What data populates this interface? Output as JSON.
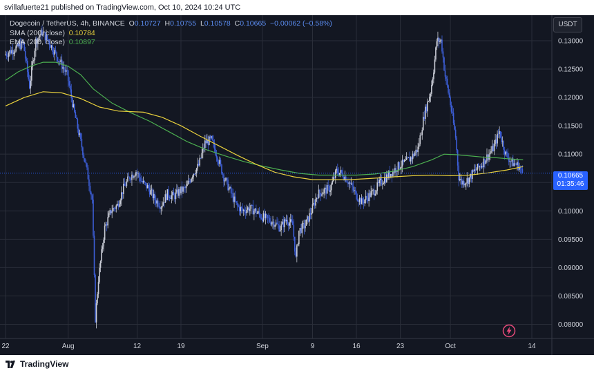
{
  "header": {
    "publisher_line": "svillafuerte21 published on TradingView.com, Oct 10, 2024 10:24 UTC"
  },
  "legend": {
    "symbol": "Dogecoin / TetherUS, 4h, BINANCE",
    "open_label": "O",
    "open": "0.10727",
    "high_label": "H",
    "high": "0.10755",
    "low_label": "L",
    "low": "0.10578",
    "close_label": "C",
    "close": "0.10665",
    "change": "−0.00062 (−0.58%)",
    "sma_label": "SMA (200, close)",
    "sma_value": "0.10784",
    "ema_label": "EMA (200, close)",
    "ema_value": "0.10897"
  },
  "price_axis": {
    "currency": "USDT"
  },
  "price_tag": {
    "price": "0.10665",
    "countdown": "01:35:46"
  },
  "footer": {
    "brand": "TradingView"
  },
  "colors": {
    "background": "#131722",
    "grid": "#2a2e39",
    "up": "#c9ccd6",
    "down": "#3d5fd9",
    "sma": "#e9d13d",
    "ema": "#4caf50",
    "last_price": "#2962ff"
  },
  "chart_data": {
    "type": "candlestick",
    "y_axis": {
      "min": 0.0775,
      "max": 0.1345,
      "ticks": [
        0.08,
        0.085,
        0.09,
        0.095,
        0.1,
        0.105,
        0.11,
        0.115,
        0.12,
        0.125,
        0.13
      ],
      "tick_labels": [
        "0.08000",
        "0.08500",
        "0.09000",
        "0.09500",
        "0.10000",
        "0.10500",
        "0.11000",
        "0.11500",
        "0.12000",
        "0.12500",
        "0.13000"
      ]
    },
    "x_axis": {
      "labels": [
        {
          "label": "22",
          "day": 0
        },
        {
          "label": "Aug",
          "day": 10
        },
        {
          "label": "12",
          "day": 21
        },
        {
          "label": "19",
          "day": 28
        },
        {
          "label": "Sep",
          "day": 41
        },
        {
          "label": "9",
          "day": 49
        },
        {
          "label": "16",
          "day": 56
        },
        {
          "label": "23",
          "day": 63
        },
        {
          "label": "Oct",
          "day": 71
        },
        {
          "label": "14",
          "day": 84
        }
      ],
      "gridline_days": [
        0,
        10,
        21,
        28,
        41,
        49,
        56,
        63,
        71,
        84
      ]
    },
    "price_path": [
      [
        0.0,
        0.1275
      ],
      [
        1.5,
        0.1285
      ],
      [
        3.0,
        0.1295
      ],
      [
        4.0,
        0.122
      ],
      [
        5.0,
        0.13
      ],
      [
        6.0,
        0.1315
      ],
      [
        7.0,
        0.13
      ],
      [
        8.0,
        0.128
      ],
      [
        9.0,
        0.126
      ],
      [
        10.0,
        0.124
      ],
      [
        11.0,
        0.118
      ],
      [
        12.0,
        0.113
      ],
      [
        13.0,
        0.108
      ],
      [
        14.0,
        0.102
      ],
      [
        14.5,
        0.081
      ],
      [
        15.0,
        0.088
      ],
      [
        16.0,
        0.097
      ],
      [
        17.0,
        0.1
      ],
      [
        18.0,
        0.101
      ],
      [
        19.0,
        0.104
      ],
      [
        20.0,
        0.106
      ],
      [
        21.0,
        0.107
      ],
      [
        22.0,
        0.105
      ],
      [
        23.0,
        0.104
      ],
      [
        24.0,
        0.102
      ],
      [
        25.0,
        0.101
      ],
      [
        26.0,
        0.103
      ],
      [
        27.0,
        0.1025
      ],
      [
        28.0,
        0.1035
      ],
      [
        29.0,
        0.104
      ],
      [
        30.0,
        0.1065
      ],
      [
        31.0,
        0.108
      ],
      [
        32.0,
        0.112
      ],
      [
        33.0,
        0.1125
      ],
      [
        34.0,
        0.1095
      ],
      [
        35.0,
        0.106
      ],
      [
        36.0,
        0.1035
      ],
      [
        37.0,
        0.101
      ],
      [
        38.0,
        0.1
      ],
      [
        39.0,
        0.1005
      ],
      [
        40.0,
        0.1
      ],
      [
        41.0,
        0.099
      ],
      [
        42.0,
        0.0985
      ],
      [
        43.0,
        0.098
      ],
      [
        44.0,
        0.097
      ],
      [
        45.0,
        0.0985
      ],
      [
        46.0,
        0.0975
      ],
      [
        46.5,
        0.0915
      ],
      [
        47.0,
        0.0965
      ],
      [
        48.0,
        0.0975
      ],
      [
        49.0,
        0.1
      ],
      [
        50.0,
        0.103
      ],
      [
        51.0,
        0.1035
      ],
      [
        52.0,
        0.104
      ],
      [
        53.0,
        0.107
      ],
      [
        54.0,
        0.1065
      ],
      [
        55.0,
        0.105
      ],
      [
        56.0,
        0.103
      ],
      [
        57.0,
        0.1015
      ],
      [
        58.0,
        0.1025
      ],
      [
        59.0,
        0.1035
      ],
      [
        60.0,
        0.105
      ],
      [
        61.0,
        0.106
      ],
      [
        62.0,
        0.107
      ],
      [
        63.0,
        0.108
      ],
      [
        64.0,
        0.1085
      ],
      [
        65.0,
        0.1095
      ],
      [
        66.0,
        0.111
      ],
      [
        67.0,
        0.117
      ],
      [
        68.0,
        0.121
      ],
      [
        68.5,
        0.125
      ],
      [
        69.0,
        0.13
      ],
      [
        69.7,
        0.13
      ],
      [
        70.3,
        0.124
      ],
      [
        71.0,
        0.12
      ],
      [
        72.0,
        0.113
      ],
      [
        72.5,
        0.106
      ],
      [
        73.0,
        0.105
      ],
      [
        74.0,
        0.1055
      ],
      [
        75.0,
        0.107
      ],
      [
        76.0,
        0.108
      ],
      [
        77.0,
        0.1095
      ],
      [
        78.0,
        0.111
      ],
      [
        79.0,
        0.114
      ],
      [
        80.0,
        0.11
      ],
      [
        81.0,
        0.1085
      ],
      [
        82.0,
        0.108
      ],
      [
        82.6,
        0.1067
      ]
    ],
    "sma_200": [
      [
        0,
        0.1185
      ],
      [
        3,
        0.12
      ],
      [
        6,
        0.121
      ],
      [
        9,
        0.1208
      ],
      [
        12,
        0.1198
      ],
      [
        15,
        0.1183
      ],
      [
        18,
        0.1176
      ],
      [
        22,
        0.1174
      ],
      [
        25,
        0.1165
      ],
      [
        28,
        0.115
      ],
      [
        31,
        0.1132
      ],
      [
        34,
        0.1115
      ],
      [
        37,
        0.1098
      ],
      [
        40,
        0.1082
      ],
      [
        43,
        0.1068
      ],
      [
        46,
        0.106
      ],
      [
        49,
        0.1055
      ],
      [
        52,
        0.1055
      ],
      [
        55,
        0.1055
      ],
      [
        58,
        0.1057
      ],
      [
        62,
        0.106
      ],
      [
        65,
        0.1062
      ],
      [
        68,
        0.1063
      ],
      [
        71,
        0.1062
      ],
      [
        74,
        0.1063
      ],
      [
        77,
        0.1067
      ],
      [
        80,
        0.1072
      ],
      [
        82.6,
        0.1078
      ]
    ],
    "ema_200": [
      [
        0,
        0.123
      ],
      [
        2,
        0.1245
      ],
      [
        4,
        0.1255
      ],
      [
        6,
        0.1262
      ],
      [
        8,
        0.1262
      ],
      [
        10,
        0.1255
      ],
      [
        12,
        0.124
      ],
      [
        14,
        0.1215
      ],
      [
        17,
        0.119
      ],
      [
        20,
        0.1173
      ],
      [
        23,
        0.1158
      ],
      [
        26,
        0.114
      ],
      [
        29,
        0.1122
      ],
      [
        32,
        0.1108
      ],
      [
        35,
        0.1097
      ],
      [
        38,
        0.1087
      ],
      [
        41,
        0.1079
      ],
      [
        44,
        0.1072
      ],
      [
        47,
        0.1066
      ],
      [
        50,
        0.1063
      ],
      [
        53,
        0.1063
      ],
      [
        56,
        0.1063
      ],
      [
        59,
        0.1065
      ],
      [
        62,
        0.107
      ],
      [
        65,
        0.1078
      ],
      [
        68,
        0.109
      ],
      [
        70,
        0.11
      ],
      [
        72,
        0.1099
      ],
      [
        74,
        0.1097
      ],
      [
        76,
        0.1095
      ],
      [
        78,
        0.1094
      ],
      [
        80,
        0.1092
      ],
      [
        82.6,
        0.109
      ]
    ],
    "last_price": 0.10665
  }
}
